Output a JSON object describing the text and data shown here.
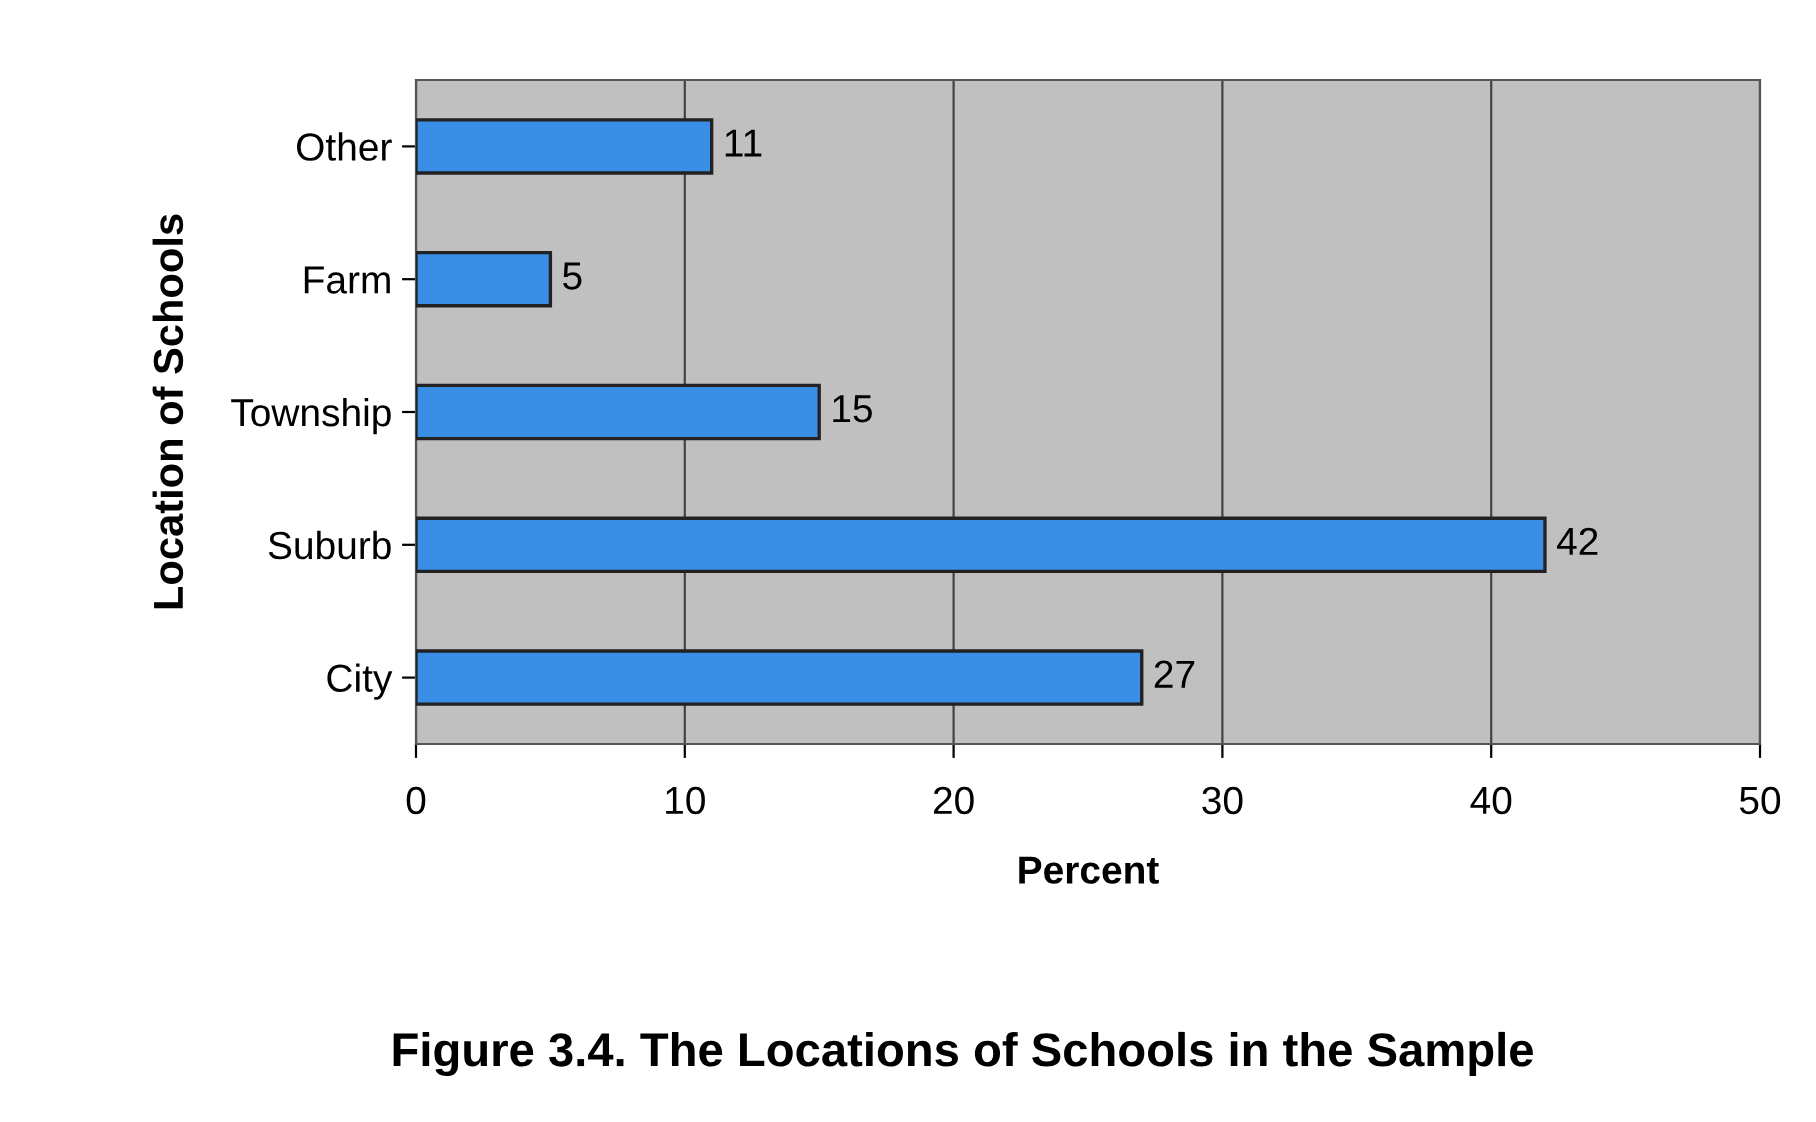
{
  "chart_data": {
    "type": "bar",
    "orientation": "horizontal",
    "title": "Figure 3.4. The Locations of Schools in the Sample",
    "xlabel": "Percent",
    "ylabel": "Location of Schools",
    "categories": [
      "Other",
      "Farm",
      "Township",
      "Suburb",
      "City"
    ],
    "values": [
      11,
      5,
      15,
      42,
      27
    ],
    "color": "#3a8ee6",
    "xlim": [
      0,
      50
    ],
    "xticks": [
      0,
      10,
      20,
      30,
      40,
      50
    ],
    "grid": "x",
    "data_labels": true
  }
}
